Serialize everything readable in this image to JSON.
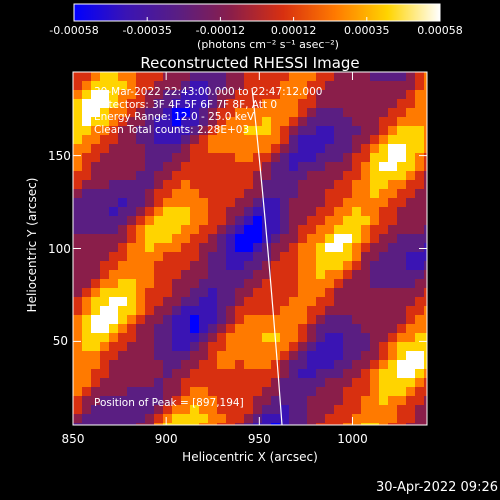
{
  "colorbar": {
    "tick_labels": [
      "-0.00058",
      "-0.00035",
      "-0.00012",
      "0.00012",
      "0.00035",
      "0.00058"
    ],
    "units": "(photons cm⁻² s⁻¹ asec⁻²)",
    "range": [
      -0.00058,
      0.00058
    ],
    "colors": [
      "#0000ff",
      "#3a14b4",
      "#5a1e82",
      "#8a1e4a",
      "#d83010",
      "#ff7a00",
      "#ffd400",
      "#ffffff"
    ]
  },
  "plot": {
    "title": "Reconstructed RHESSI Image",
    "info_lines": [
      "30-Mar-2022 22:43:00.000 to 22:47:12.000",
      "Detectors: 3F 4F 5F 6F 7F 8F, Att 0",
      "Energy Range: 12.0 - 25.0 keV",
      "Clean     Total counts: 2.28E+03"
    ],
    "peak_label": "Position of Peak = [897,194]",
    "xlabel": "Heliocentric X (arcsec)",
    "ylabel": "Heliocentric Y (arcsec)",
    "x_tick_labels": [
      "850",
      "900",
      "950",
      "1000"
    ],
    "y_tick_labels": [
      "50",
      "100",
      "150"
    ],
    "x_ticks": [
      850,
      900,
      950,
      1000
    ],
    "y_ticks": [
      50,
      100,
      150
    ],
    "xlim": [
      850,
      1040
    ],
    "ylim": [
      5,
      195
    ],
    "limb_line_color": "#ffffff"
  },
  "timestamp": "30-Apr-2022 09:26"
}
